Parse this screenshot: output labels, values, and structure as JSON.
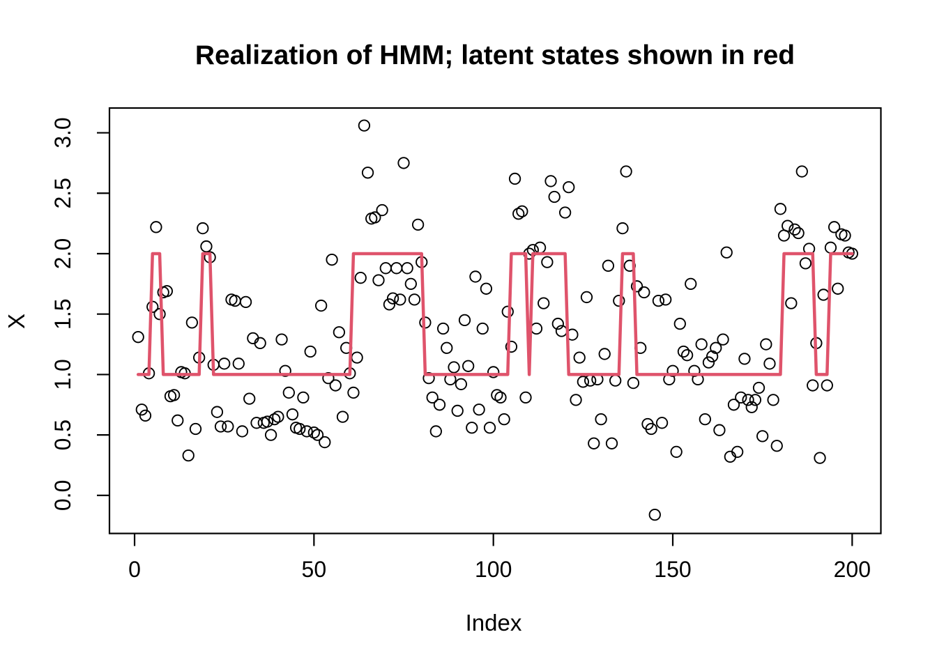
{
  "chart_data": {
    "type": "scatter",
    "title": "Realization of HMM; latent states shown in red",
    "xlabel": "Index",
    "ylabel": "X",
    "x_start": 1,
    "xlim": [
      -7,
      208
    ],
    "ylim": [
      -0.315,
      3.205
    ],
    "grid": false,
    "legend": "none",
    "x_axis": {
      "tick_values": [
        0,
        50,
        100,
        150,
        200
      ],
      "tick_labels": [
        "0",
        "50",
        "100",
        "150",
        "200"
      ]
    },
    "y_axis": {
      "tick_values": [
        0.0,
        0.5,
        1.0,
        1.5,
        2.0,
        2.5,
        3.0
      ],
      "tick_labels": [
        "0.0",
        "0.5",
        "1.0",
        "1.5",
        "2.0",
        "2.5",
        "3.0"
      ]
    },
    "series": [
      {
        "name": "observations",
        "type": "scatter",
        "marker": "open-circle",
        "color": "#000000",
        "values": [
          1.31,
          0.71,
          0.66,
          1.01,
          1.56,
          2.22,
          1.5,
          1.68,
          1.69,
          0.82,
          0.83,
          0.62,
          1.02,
          1.01,
          0.33,
          1.43,
          0.55,
          1.14,
          2.21,
          2.06,
          1.97,
          1.08,
          0.69,
          0.57,
          1.09,
          0.57,
          1.62,
          1.61,
          1.09,
          0.53,
          1.6,
          0.8,
          1.3,
          0.6,
          1.26,
          0.6,
          0.61,
          0.5,
          0.63,
          0.65,
          1.29,
          1.03,
          0.85,
          0.67,
          0.56,
          0.55,
          0.81,
          0.53,
          1.19,
          0.52,
          0.5,
          1.57,
          0.44,
          0.97,
          1.95,
          0.91,
          1.35,
          0.65,
          1.22,
          1.01,
          0.85,
          1.14,
          1.8,
          3.06,
          2.67,
          2.29,
          2.3,
          1.78,
          2.36,
          1.88,
          1.58,
          1.63,
          1.88,
          1.62,
          2.75,
          1.88,
          1.75,
          1.62,
          2.24,
          1.93,
          1.43,
          0.97,
          0.81,
          0.53,
          0.75,
          1.38,
          1.22,
          0.96,
          1.06,
          0.7,
          0.92,
          1.45,
          1.07,
          0.56,
          1.81,
          0.71,
          1.38,
          1.71,
          0.56,
          1.02,
          0.83,
          0.81,
          0.63,
          1.52,
          1.23,
          2.62,
          2.33,
          2.35,
          0.81,
          2.0,
          2.03,
          1.38,
          2.05,
          1.59,
          1.93,
          2.6,
          2.47,
          1.42,
          1.36,
          2.34,
          2.55,
          1.33,
          0.79,
          1.14,
          0.94,
          1.64,
          0.95,
          0.43,
          0.96,
          0.63,
          1.17,
          1.9,
          0.43,
          0.95,
          1.61,
          2.21,
          2.68,
          1.9,
          0.93,
          1.73,
          1.22,
          1.68,
          0.59,
          0.55,
          -0.16,
          1.61,
          0.6,
          1.62,
          0.96,
          1.03,
          0.36,
          1.42,
          1.19,
          1.16,
          1.75,
          1.03,
          0.96,
          1.25,
          0.63,
          1.1,
          1.15,
          1.22,
          0.54,
          1.29,
          2.01,
          0.32,
          0.75,
          0.36,
          0.81,
          1.13,
          0.79,
          0.73,
          0.79,
          0.89,
          0.49,
          1.25,
          1.09,
          0.79,
          0.41,
          2.37,
          2.15,
          2.23,
          1.59,
          2.2,
          2.17,
          2.68,
          1.92,
          2.04,
          0.91,
          1.26,
          0.31,
          1.66,
          0.91,
          2.05,
          2.22,
          1.71,
          2.16,
          2.15,
          2.01,
          2.0
        ]
      },
      {
        "name": "latent-states",
        "type": "step-line",
        "color": "#DF536B",
        "state_runs": [
          [
            1,
            4,
            1
          ],
          [
            5,
            7,
            2
          ],
          [
            8,
            18,
            1
          ],
          [
            19,
            21,
            2
          ],
          [
            22,
            60,
            1
          ],
          [
            61,
            80,
            2
          ],
          [
            81,
            104,
            1
          ],
          [
            105,
            109,
            2
          ],
          [
            110,
            110,
            1
          ],
          [
            111,
            120,
            2
          ],
          [
            121,
            135,
            1
          ],
          [
            136,
            139,
            2
          ],
          [
            140,
            180,
            1
          ],
          [
            181,
            189,
            2
          ],
          [
            190,
            193,
            1
          ],
          [
            194,
            200,
            2
          ]
        ]
      }
    ]
  },
  "colors": {
    "background": "#ffffff",
    "frame": "#000000",
    "points": "#000000",
    "state_line": "#DF536B"
  }
}
